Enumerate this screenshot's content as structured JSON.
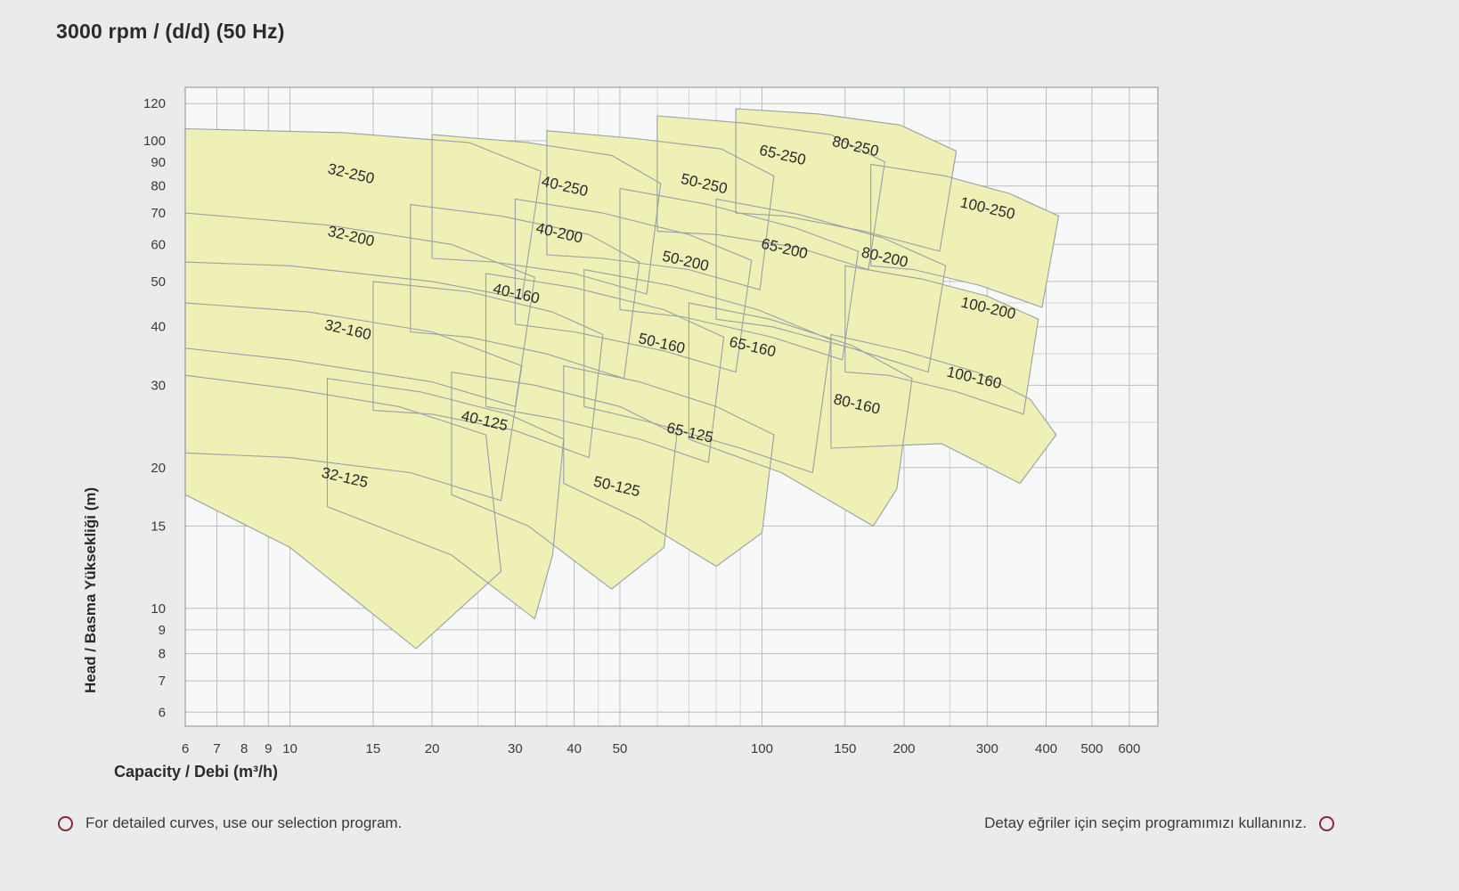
{
  "title": "3000 rpm / (d/d) (50 Hz)",
  "footer": {
    "left": "For detailed curves, use our selection program.",
    "right": "Detay eğriler için seçim programımızı kullanınız."
  },
  "colors": {
    "page_bg": "#e9ebec",
    "plot_bg": "#f7f8f8",
    "grid_minor": "#d3d6d8",
    "grid_major": "#babec1",
    "plot_border": "#9aa0a5",
    "region_fill": "#eef0b6",
    "region_stroke": "#99a0a6",
    "label_text": "#2a2a2a",
    "tick_text": "#3a3a3a",
    "accent_circle": "#8d2734"
  },
  "chart_data": {
    "type": "area",
    "title": "3000 rpm / (d/d) (50 Hz)",
    "xlabel": "Capacity / Debi (m³/h)",
    "ylabel": "Head / Basma Yüksekliği (m)",
    "x_scale": "log",
    "y_scale": "log",
    "xlim": [
      6,
      690
    ],
    "ylim": [
      5.6,
      130
    ],
    "grid": true,
    "legend": false,
    "x_ticks": [
      6,
      7,
      8,
      9,
      10,
      15,
      20,
      30,
      40,
      50,
      100,
      150,
      200,
      300,
      400,
      500,
      600
    ],
    "y_ticks": [
      6,
      7,
      8,
      9,
      10,
      15,
      20,
      30,
      40,
      50,
      60,
      70,
      80,
      90,
      100,
      120
    ],
    "x_grid_minor": [
      6,
      7,
      8,
      9,
      10,
      15,
      20,
      25,
      30,
      35,
      40,
      45,
      50,
      60,
      70,
      80,
      90,
      100,
      150,
      200,
      250,
      300,
      400,
      500,
      600
    ],
    "y_grid_minor": [
      6,
      7,
      8,
      9,
      10,
      15,
      20,
      25,
      30,
      35,
      40,
      45,
      50,
      60,
      70,
      80,
      90,
      100,
      120
    ],
    "label_rotation_deg": 13,
    "regions": [
      {
        "name": "32-125",
        "label": "32-125",
        "label_at": [
          13,
          18.6
        ],
        "points": [
          [
            6,
            31.5
          ],
          [
            10,
            29.5
          ],
          [
            17,
            27
          ],
          [
            26,
            23.5
          ],
          [
            28,
            12
          ],
          [
            18.5,
            8.2
          ],
          [
            10,
            13.5
          ],
          [
            6,
            17.5
          ]
        ]
      },
      {
        "name": "32-160",
        "label": "32-160",
        "label_at": [
          13.2,
          38.5
        ],
        "points": [
          [
            6,
            45
          ],
          [
            11,
            43
          ],
          [
            20,
            39
          ],
          [
            31,
            33
          ],
          [
            28,
            17
          ],
          [
            18,
            19.5
          ],
          [
            10,
            21
          ],
          [
            6,
            21.5
          ]
        ]
      },
      {
        "name": "32-200",
        "label": "32-200",
        "label_at": [
          13.4,
          61
        ],
        "points": [
          [
            6,
            70
          ],
          [
            12,
            66
          ],
          [
            22,
            60
          ],
          [
            33,
            51
          ],
          [
            30,
            27
          ],
          [
            20,
            30.5
          ],
          [
            10,
            34
          ],
          [
            6,
            36
          ]
        ]
      },
      {
        "name": "32-250",
        "label": "32-250",
        "label_at": [
          13.4,
          83
        ],
        "points": [
          [
            6,
            106
          ],
          [
            13,
            104
          ],
          [
            24,
            99
          ],
          [
            34,
            86
          ],
          [
            31,
            46
          ],
          [
            20,
            50
          ],
          [
            10,
            54
          ],
          [
            6,
            55
          ]
        ]
      },
      {
        "name": "40-125",
        "label": "40-125",
        "label_at": [
          25.7,
          24.6
        ],
        "points": [
          [
            12,
            31
          ],
          [
            19,
            29
          ],
          [
            29,
            26
          ],
          [
            38,
            23
          ],
          [
            36,
            13
          ],
          [
            33,
            9.5
          ],
          [
            22,
            13
          ],
          [
            12,
            16.5
          ]
        ]
      },
      {
        "name": "40-160",
        "label": "40-160",
        "label_at": [
          30,
          46
        ],
        "points": [
          [
            15,
            50
          ],
          [
            24,
            47.5
          ],
          [
            36,
            43
          ],
          [
            46,
            38.5
          ],
          [
            43,
            21
          ],
          [
            30,
            24
          ],
          [
            20,
            26
          ],
          [
            15,
            26.5
          ]
        ]
      },
      {
        "name": "40-200",
        "label": "40-200",
        "label_at": [
          37,
          62
        ],
        "points": [
          [
            18,
            73
          ],
          [
            28,
            69
          ],
          [
            43,
            63
          ],
          [
            55,
            55
          ],
          [
            51,
            31
          ],
          [
            35,
            35
          ],
          [
            24,
            38
          ],
          [
            18,
            39
          ]
        ]
      },
      {
        "name": "40-250",
        "label": "40-250",
        "label_at": [
          38,
          78
        ],
        "points": [
          [
            20,
            103
          ],
          [
            32,
            99
          ],
          [
            48,
            93
          ],
          [
            61,
            81
          ],
          [
            57,
            47
          ],
          [
            40,
            52
          ],
          [
            27,
            55
          ],
          [
            20,
            56
          ]
        ]
      },
      {
        "name": "50-125",
        "label": "50-125",
        "label_at": [
          49,
          17.8
        ],
        "points": [
          [
            22,
            32
          ],
          [
            33,
            30
          ],
          [
            50,
            27
          ],
          [
            66,
            23.5
          ],
          [
            62,
            13.5
          ],
          [
            48,
            11
          ],
          [
            32,
            15
          ],
          [
            22,
            17.5
          ]
        ]
      },
      {
        "name": "50-160",
        "label": "50-160",
        "label_at": [
          61,
          36
        ],
        "points": [
          [
            26,
            52
          ],
          [
            40,
            48.5
          ],
          [
            62,
            43.5
          ],
          [
            83,
            38
          ],
          [
            77,
            20.5
          ],
          [
            55,
            23
          ],
          [
            36,
            25.5
          ],
          [
            26,
            27
          ]
        ]
      },
      {
        "name": "50-200",
        "label": "50-200",
        "label_at": [
          68.5,
          54
        ],
        "points": [
          [
            30,
            75
          ],
          [
            46,
            70
          ],
          [
            70,
            63
          ],
          [
            95,
            55.5
          ],
          [
            88,
            32
          ],
          [
            62,
            35.5
          ],
          [
            40,
            39
          ],
          [
            30,
            40.5
          ]
        ]
      },
      {
        "name": "50-250",
        "label": "50-250",
        "label_at": [
          75,
          79
        ],
        "points": [
          [
            35,
            105
          ],
          [
            54,
            101
          ],
          [
            82,
            96
          ],
          [
            106,
            84
          ],
          [
            99,
            48
          ],
          [
            70,
            53
          ],
          [
            46,
            56
          ],
          [
            35,
            57
          ]
        ]
      },
      {
        "name": "65-125",
        "label": "65-125",
        "label_at": [
          70,
          23.2
        ],
        "points": [
          [
            38,
            33
          ],
          [
            55,
            30.5
          ],
          [
            80,
            27
          ],
          [
            106,
            23.5
          ],
          [
            100,
            14.5
          ],
          [
            80,
            12.3
          ],
          [
            55,
            15.5
          ],
          [
            38,
            18.5
          ]
        ]
      },
      {
        "name": "65-160",
        "label": "65-160",
        "label_at": [
          95,
          35.4
        ],
        "points": [
          [
            42,
            53
          ],
          [
            64,
            49
          ],
          [
            98,
            43.5
          ],
          [
            140,
            37.5
          ],
          [
            128,
            19.5
          ],
          [
            90,
            22
          ],
          [
            58,
            25
          ],
          [
            42,
            27
          ]
        ]
      },
      {
        "name": "65-200",
        "label": "65-200",
        "label_at": [
          111,
          57.4
        ],
        "points": [
          [
            50,
            79
          ],
          [
            77,
            73
          ],
          [
            118,
            65
          ],
          [
            160,
            58
          ],
          [
            148,
            34
          ],
          [
            105,
            38
          ],
          [
            68,
            42
          ],
          [
            50,
            43.5
          ]
        ]
      },
      {
        "name": "65-250",
        "label": "65-250",
        "label_at": [
          110,
          91
        ],
        "points": [
          [
            60,
            113
          ],
          [
            92,
            109
          ],
          [
            140,
            103
          ],
          [
            182,
            90
          ],
          [
            168,
            53
          ],
          [
            120,
            59
          ],
          [
            80,
            63
          ],
          [
            60,
            64
          ]
        ]
      },
      {
        "name": "80-160",
        "label": "80-160",
        "label_at": [
          158,
          26.7
        ],
        "points": [
          [
            70,
            45
          ],
          [
            104,
            41.5
          ],
          [
            155,
            36.5
          ],
          [
            208,
            31
          ],
          [
            193,
            18
          ],
          [
            172,
            15
          ],
          [
            110,
            19.5
          ],
          [
            70,
            23
          ]
        ]
      },
      {
        "name": "80-200",
        "label": "80-200",
        "label_at": [
          181,
          55
        ],
        "points": [
          [
            80,
            75
          ],
          [
            120,
            69.5
          ],
          [
            180,
            62
          ],
          [
            245,
            54
          ],
          [
            225,
            32
          ],
          [
            155,
            36
          ],
          [
            105,
            40
          ],
          [
            80,
            41.5
          ]
        ]
      },
      {
        "name": "80-250",
        "label": "80-250",
        "label_at": [
          157,
          95
        ],
        "points": [
          [
            88,
            117
          ],
          [
            132,
            114
          ],
          [
            196,
            108
          ],
          [
            258,
            95
          ],
          [
            238,
            58
          ],
          [
            165,
            64
          ],
          [
            112,
            69
          ],
          [
            88,
            70
          ]
        ]
      },
      {
        "name": "100-160",
        "label": "100-160",
        "label_at": [
          280,
          30.4
        ],
        "points": [
          [
            140,
            38.5
          ],
          [
            200,
            35.5
          ],
          [
            285,
            32
          ],
          [
            370,
            28
          ],
          [
            420,
            23.5
          ],
          [
            352,
            18.5
          ],
          [
            240,
            22.5
          ],
          [
            140,
            22
          ]
        ]
      },
      {
        "name": "100-200",
        "label": "100-200",
        "label_at": [
          300,
          42.8
        ],
        "points": [
          [
            150,
            54
          ],
          [
            220,
            50.5
          ],
          [
            300,
            46.5
          ],
          [
            385,
            41.5
          ],
          [
            358,
            26
          ],
          [
            260,
            29
          ],
          [
            185,
            31.5
          ],
          [
            150,
            32
          ]
        ]
      },
      {
        "name": "100-250",
        "label": "100-250",
        "label_at": [
          299,
          70
        ],
        "points": [
          [
            170,
            89
          ],
          [
            245,
            84
          ],
          [
            335,
            77
          ],
          [
            425,
            69
          ],
          [
            392,
            44
          ],
          [
            290,
            49
          ],
          [
            210,
            53
          ],
          [
            170,
            54
          ]
        ]
      }
    ]
  }
}
